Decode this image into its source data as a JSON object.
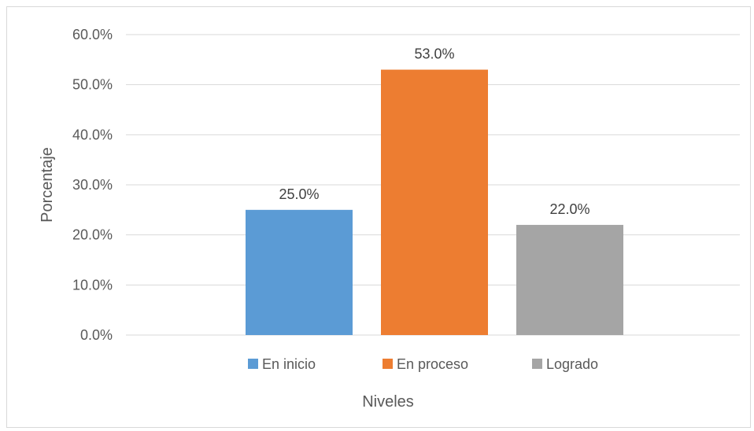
{
  "chart_data": {
    "type": "bar",
    "categories": [
      "En inicio",
      "En proceso",
      "Logrado"
    ],
    "values": [
      25.0,
      53.0,
      22.0
    ],
    "data_labels": [
      "25.0%",
      "53.0%",
      "22.0%"
    ],
    "colors": [
      "#5b9bd5",
      "#ed7d31",
      "#a5a5a5"
    ],
    "title": "",
    "xlabel": "Niveles",
    "ylabel": "Porcentaje",
    "ylim": [
      0,
      60
    ],
    "yticks": [
      0,
      10,
      20,
      30,
      40,
      50,
      60
    ],
    "ytick_labels": [
      "0.0%",
      "10.0%",
      "20.0%",
      "30.0%",
      "40.0%",
      "50.0%",
      "60.0%"
    ],
    "grid": true,
    "legend_position": "bottom",
    "gridline_color": "#d9d9d9"
  }
}
